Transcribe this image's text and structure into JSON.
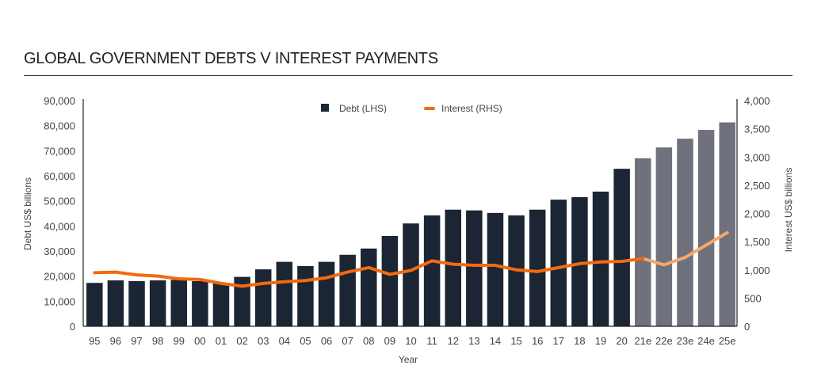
{
  "chart_data": {
    "type": "bar",
    "title": "GLOBAL GOVERNMENT DEBTS V INTEREST PAYMENTS",
    "xlabel": "Year",
    "ylabel": "Debt US$ billions",
    "y2label": "Interest US$ billions",
    "ylim": [
      0,
      90000
    ],
    "y2lim": [
      0,
      4000
    ],
    "yticks": [
      "0",
      "10,000",
      "20,000",
      "30,000",
      "40,000",
      "50,000",
      "60,000",
      "70,000",
      "80,000",
      "90,000"
    ],
    "y2ticks": [
      "0",
      "500",
      "1,000",
      "1,500",
      "2,000",
      "2,500",
      "3,000",
      "3,500",
      "4,000"
    ],
    "categories": [
      "95",
      "96",
      "97",
      "98",
      "99",
      "00",
      "01",
      "02",
      "03",
      "04",
      "05",
      "06",
      "07",
      "08",
      "09",
      "10",
      "11",
      "12",
      "13",
      "14",
      "15",
      "16",
      "17",
      "18",
      "19",
      "20",
      "21e",
      "22e",
      "23e",
      "24e",
      "25e"
    ],
    "series": [
      {
        "name": "Debt (LHS)",
        "type": "bar",
        "axis": "left",
        "color": "#1b2533",
        "estimate_color": "#6f717c",
        "values": [
          17300,
          18300,
          18000,
          18300,
          18500,
          18000,
          17300,
          19700,
          22700,
          25700,
          24000,
          25700,
          28500,
          31000,
          36000,
          41000,
          44200,
          46500,
          46200,
          45200,
          44200,
          46500,
          50500,
          51500,
          53700,
          62800,
          67000,
          71300,
          74800,
          78300,
          81300
        ]
      },
      {
        "name": "Interest (RHS)",
        "type": "line",
        "axis": "right",
        "color": "#f26a10",
        "estimate_color": "#f5a86a",
        "values": [
          950,
          960,
          910,
          890,
          840,
          830,
          760,
          710,
          760,
          790,
          810,
          860,
          960,
          1040,
          920,
          990,
          1160,
          1100,
          1080,
          1080,
          1000,
          970,
          1040,
          1110,
          1140,
          1150,
          1200,
          1090,
          1220,
          1440,
          1660
        ]
      }
    ],
    "estimate_start_index": 26,
    "legend": "top-center"
  }
}
